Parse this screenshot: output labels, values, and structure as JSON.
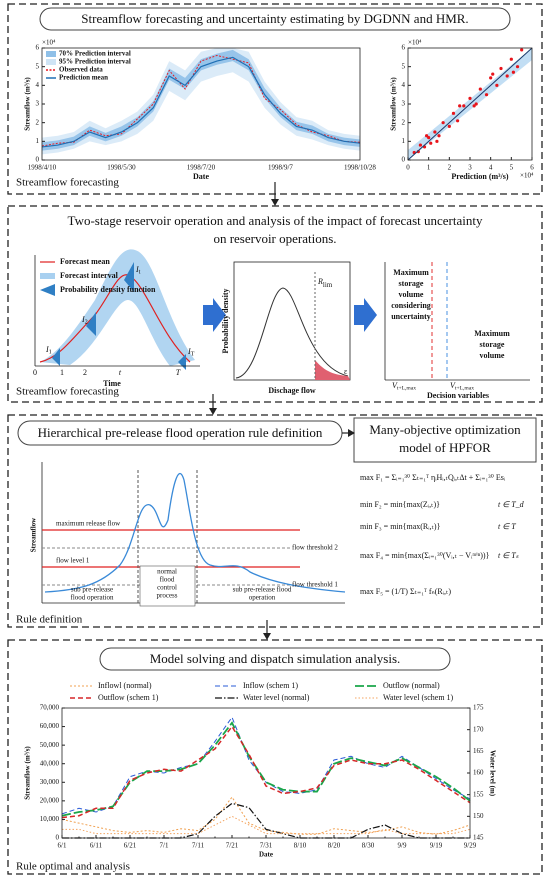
{
  "forecast": {
    "title": "Streamflow forecasting and uncertainty estimating by DGDNN and HMR.",
    "caption": "Streamflow forecasting",
    "series_chart": {
      "type": "line",
      "categories": [
        "1998/4/10",
        null,
        null,
        null,
        null,
        "1998/5/30",
        null,
        null,
        null,
        null,
        "1998/7/20",
        null,
        null,
        null,
        null,
        "1998/9/7",
        null,
        null,
        null,
        null,
        "1998/10/28"
      ],
      "ylabel": "Streamflow (m³/s)",
      "xlabel": "Date",
      "multiplier": "×10⁴",
      "ylim": [
        0,
        6
      ],
      "yticks": [
        0,
        1,
        2,
        3,
        4,
        5,
        6
      ],
      "series": [
        {
          "name": "70% Prediction interval",
          "color": "#8fc0e8",
          "lower": [
            0.5,
            0.6,
            0.8,
            1.3,
            1.0,
            1.3,
            1.8,
            2.6,
            4.3,
            3.8,
            4.8,
            5.1,
            5.3,
            4.8,
            3.3,
            2.3,
            1.6,
            1.4,
            1.0,
            0.8,
            0.7
          ],
          "upper": [
            0.95,
            1.05,
            1.25,
            1.8,
            1.45,
            1.8,
            2.3,
            3.15,
            4.9,
            4.4,
            5.4,
            5.7,
            5.9,
            5.4,
            3.85,
            2.8,
            2.05,
            1.85,
            1.4,
            1.2,
            1.1
          ]
        },
        {
          "name": "95% Prediction interval",
          "color": "#cfe4f5",
          "lower": [
            0.3,
            0.4,
            0.6,
            1.0,
            0.8,
            1.0,
            1.4,
            2.1,
            3.7,
            3.2,
            4.2,
            4.5,
            4.7,
            4.2,
            2.8,
            1.9,
            1.3,
            1.1,
            0.8,
            0.6,
            0.5
          ],
          "upper": [
            1.2,
            1.3,
            1.5,
            2.1,
            1.7,
            2.1,
            2.6,
            3.5,
            5.3,
            4.8,
            5.8,
            6.0,
            6.0,
            5.8,
            4.2,
            3.1,
            2.3,
            2.1,
            1.6,
            1.4,
            1.3
          ]
        },
        {
          "name": "Observed data",
          "color": "#e8141b",
          "values": [
            0.75,
            0.9,
            0.95,
            1.6,
            1.3,
            1.4,
            2.2,
            3.0,
            4.8,
            3.8,
            5.3,
            5.6,
            5.4,
            5.2,
            3.3,
            2.7,
            1.9,
            1.5,
            1.3,
            1.0,
            0.95
          ]
        },
        {
          "name": "Prediction mean",
          "color": "#1f6fb4",
          "values": [
            0.7,
            0.8,
            1.0,
            1.5,
            1.2,
            1.5,
            2.0,
            2.8,
            4.5,
            4.0,
            5.0,
            5.3,
            5.5,
            5.0,
            3.5,
            2.5,
            1.8,
            1.6,
            1.2,
            1.0,
            0.9
          ]
        }
      ]
    },
    "scatter": {
      "type": "scatter",
      "color": "#e8141b",
      "x": [
        0.3,
        0.5,
        0.6,
        0.8,
        1.0,
        1.1,
        1.3,
        1.5,
        1.7,
        2.0,
        2.2,
        2.4,
        2.7,
        3.0,
        3.2,
        3.5,
        3.8,
        4.0,
        4.3,
        4.5,
        4.8,
        5.0,
        5.3,
        5.5,
        0.9,
        1.4,
        2.5,
        3.3,
        4.1,
        5.1
      ],
      "y": [
        0.4,
        0.45,
        0.8,
        0.7,
        1.2,
        0.9,
        1.5,
        1.3,
        2.0,
        1.8,
        2.5,
        2.1,
        2.9,
        3.3,
        2.9,
        3.8,
        3.5,
        4.4,
        4.0,
        4.9,
        4.5,
        5.4,
        5.0,
        5.9,
        1.3,
        1.0,
        2.9,
        3.0,
        4.6,
        4.7
      ],
      "xlim": [
        0,
        6
      ],
      "ylim": [
        0,
        6
      ],
      "xticks": [
        0,
        1,
        2,
        3,
        4,
        5,
        6
      ],
      "yticks": [
        0,
        1,
        2,
        3,
        4,
        5,
        6
      ],
      "xlabel": "Prediction (m³/s)",
      "ylabel": "Streamflow (m³/s)",
      "x_multiplier": "×10⁴",
      "y_multiplier": "×10⁴"
    }
  },
  "reservoir": {
    "title_lines": [
      "Two-stage reservoir operation and analysis of the impact of forecast uncertainty",
      "on reservoir operations."
    ],
    "caption": "Streamflow forecasting",
    "legend": [
      "Forecast mean",
      "Forecast interval",
      "Probability density function"
    ],
    "points": [
      {
        "symbol": "I",
        "sub": "1"
      },
      {
        "symbol": "I",
        "sub": "2"
      },
      {
        "symbol": "I",
        "sub": "t"
      },
      {
        "symbol": "I",
        "sub": "T"
      }
    ],
    "time_ticks": [
      "0",
      "1",
      "2",
      "t",
      "T"
    ],
    "time_label": "Time",
    "density_label": "Probability density",
    "threshold": {
      "symbol": "R",
      "sub": "lim"
    },
    "tail_label": "ε",
    "flow_label": "Dischage flow",
    "storage_uncertain": [
      "Maximum",
      "storage",
      "volume",
      "considering",
      "uncertainty"
    ],
    "storage": [
      "Maximum",
      "storage",
      "volume"
    ],
    "volumes": [
      {
        "symbol": "V",
        "sub": "t+L,max"
      },
      {
        "symbol": "V",
        "sub": "t+L,max"
      }
    ],
    "decision_label": "Decision variables"
  },
  "rule": {
    "title": "Hierarchical pre-release flood operation rule definition",
    "model_title": [
      "Many-objective optimization",
      "model of HPFOR"
    ],
    "caption": "Rule definition",
    "ylabel": "Streamflow",
    "levels": [
      "maximum release flow",
      "flow level 1"
    ],
    "thresholds": [
      "flow threshold 2",
      "flow threshold 1"
    ],
    "phases": [
      [
        "sub pre-release",
        "flood operation"
      ],
      [
        "normal",
        "flood",
        "control",
        "process"
      ],
      [
        "sub pre-release flood",
        "operation"
      ]
    ],
    "objectives": [
      {
        "formula": "max F₁ = Σᵢ₌₁³⁰ Σₜ₌₁ᵀ ηᵢHᵢ,ₜQᵢ,ₜΔt + Σᵢ₌₁³⁰ Esᵢ"
      },
      {
        "formula": "min F₂ = min{max(Zᵢ,ₜ)}",
        "domain": "t ∈ T_d"
      },
      {
        "formula": "min F₃ = min{max(Rᵢ,ₜ)}",
        "domain": "t ∈ T"
      },
      {
        "formula": "max F₄ = min{max(Σᵢ₌₁³⁰(Vᵢ,ₜ − Vᵢᵐⁱⁿ))}",
        "domain": "t ∈ Tₛ"
      },
      {
        "formula": "max F₅ = (1/T) Σₜ₌₁ᵀ fₙ(Rᵢ,ₜ)"
      }
    ]
  },
  "solving": {
    "title": "Model solving and dispatch simulation analysis.",
    "caption": "Rule optimal and analysis",
    "chart": {
      "type": "line",
      "categories": [
        "6/1",
        null,
        "6/11",
        null,
        "6/21",
        null,
        "7/1",
        null,
        "7/11",
        null,
        "7/21",
        null,
        "7/31",
        null,
        "8/10",
        null,
        "8/20",
        null,
        "8/30",
        null,
        "9/9",
        null,
        "9/19",
        null,
        "9/29"
      ],
      "xlabel": "Date",
      "ylabel": "Streamflow (m³/s)",
      "y2label": "Water level (m)",
      "ylim": [
        0,
        70000
      ],
      "yticks": [
        0,
        {
          "value": 10000,
          "label": "10,000"
        },
        {
          "value": 20000,
          "label": "20,000"
        },
        {
          "value": 30000,
          "label": "30,000"
        },
        {
          "value": 40000,
          "label": "40,000"
        },
        {
          "value": 50000,
          "label": "50,000"
        },
        {
          "value": 60000,
          "label": "60,000"
        },
        {
          "value": 70000,
          "label": "70,000"
        }
      ],
      "y2lim": [
        145,
        175
      ],
      "y2ticks": [
        145,
        150,
        155,
        160,
        165,
        170,
        175
      ],
      "series": [
        {
          "name": "Inflowl (normal)",
          "color": "#f0a050",
          "values": [
            10000,
            8000,
            6000,
            4000,
            3000,
            4000,
            3000,
            5000,
            4000,
            10000,
            22000,
            8000,
            4000,
            3000,
            2000,
            2000,
            5000,
            4000,
            3000,
            4000,
            6000,
            3000,
            2000,
            4000,
            7000
          ]
        },
        {
          "name": "Inflow (schem 1)",
          "color": "#2a5bd7",
          "values": [
            13000,
            16000,
            14000,
            17000,
            33000,
            36000,
            35000,
            38000,
            40000,
            52000,
            65000,
            42000,
            30000,
            25000,
            24000,
            26000,
            42000,
            44000,
            40000,
            38000,
            44000,
            38000,
            32000,
            26000,
            21000
          ]
        },
        {
          "name": "Outflow (normal)",
          "color": "#1aa64a",
          "values": [
            12000,
            14000,
            15000,
            17000,
            30000,
            36000,
            36000,
            37000,
            40000,
            50000,
            62000,
            44000,
            30000,
            26000,
            25000,
            25000,
            40000,
            43000,
            41000,
            39000,
            43000,
            38000,
            33000,
            27000,
            20000
          ]
        },
        {
          "name": "Outflow (schem 1)",
          "color": "#d62728",
          "values": [
            11000,
            12000,
            16000,
            16000,
            31000,
            35000,
            37000,
            36000,
            42000,
            48000,
            60000,
            45000,
            28000,
            24000,
            25000,
            27000,
            39000,
            42000,
            40000,
            40000,
            42000,
            37000,
            31000,
            25000,
            19000
          ]
        },
        {
          "name": "Water level (normal)",
          "color": "#111111",
          "axis": "y2",
          "values": [
            145,
            145,
            145,
            145,
            145,
            145,
            145,
            145,
            146,
            150,
            153,
            152,
            147,
            146,
            145,
            145,
            145,
            145,
            147,
            148,
            146,
            145,
            145,
            145,
            145
          ]
        },
        {
          "name": "Water level (schem 1)",
          "color": "#f4a460",
          "axis": "y2",
          "values": [
            147,
            147,
            146,
            146,
            146,
            146,
            146,
            146,
            146,
            148,
            150,
            148,
            146,
            146,
            146,
            146,
            146,
            146,
            146,
            147,
            146,
            146,
            146,
            146,
            147
          ]
        }
      ]
    }
  }
}
